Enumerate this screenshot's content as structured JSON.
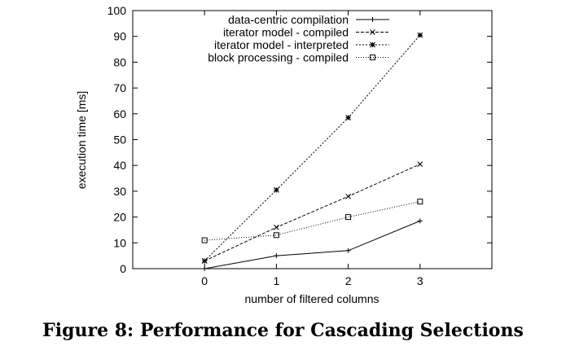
{
  "chart_data": {
    "type": "line",
    "xlabel": "number of filtered columns",
    "ylabel": "execution time [ms]",
    "x": [
      0,
      1,
      2,
      3
    ],
    "xticks": [
      "0",
      "1",
      "2",
      "3"
    ],
    "xlim": [
      -1,
      4
    ],
    "yticks": [
      "0",
      "10",
      "20",
      "30",
      "40",
      "50",
      "60",
      "70",
      "80",
      "90",
      "100"
    ],
    "ylim": [
      0,
      100
    ],
    "legend_position": "top-right",
    "series": [
      {
        "name": "data-centric compilation",
        "values": [
          0,
          5,
          7,
          18.5
        ],
        "dash": "solid",
        "marker": "plus"
      },
      {
        "name": "iterator model - compiled",
        "values": [
          3,
          16,
          28,
          40.5
        ],
        "dash": "dashed",
        "marker": "x"
      },
      {
        "name": "iterator model - interpreted",
        "values": [
          3,
          30.5,
          58.5,
          90.5
        ],
        "dash": "dotted",
        "marker": "star"
      },
      {
        "name": "block processing - compiled",
        "values": [
          11,
          13,
          20,
          26
        ],
        "dash": "fine-dotted",
        "marker": "square"
      }
    ]
  },
  "caption": "Figure 8: Performance for Cascading Selections"
}
